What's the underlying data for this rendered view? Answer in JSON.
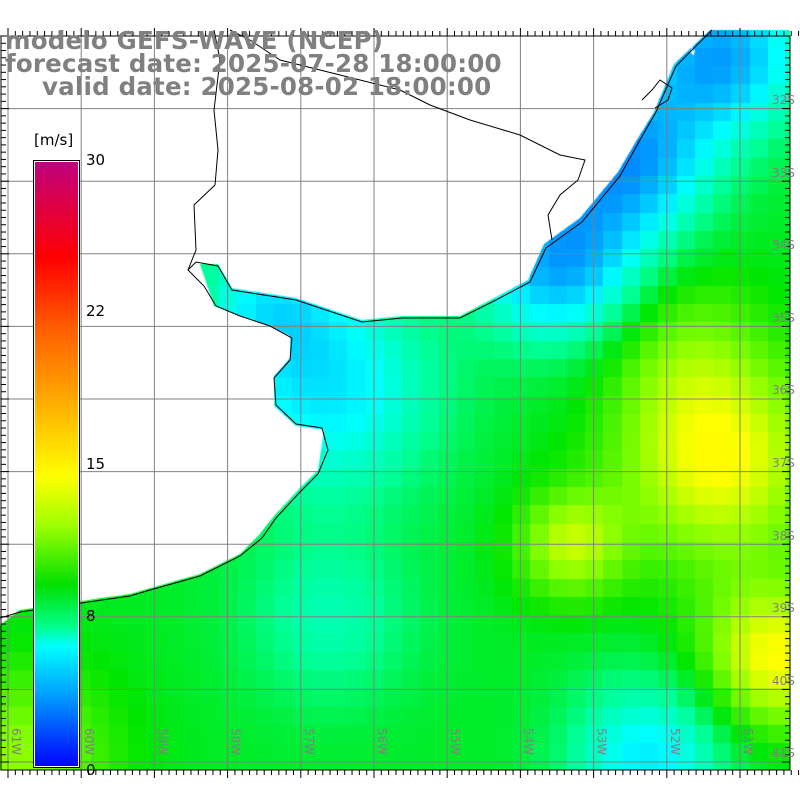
{
  "title": {
    "model": "modelo GEFS-WAVE (NCEP)",
    "forecast": "forecast date: 2025-07-28 18:00:00",
    "valid": "valid date: 2025-08-02 18:00:00"
  },
  "colorbar": {
    "units": "[m/s]",
    "ticks": [
      "30",
      "22",
      "15",
      "8",
      "0"
    ],
    "colors": {
      "max": "#c0007f",
      "red": "#ff0000",
      "yellow": "#ffff00",
      "green": "#00e000",
      "cyan": "#00ffff",
      "min": "#0000ff"
    }
  },
  "axes": {
    "lat_labels": [
      "32S",
      "33S",
      "34S",
      "35S",
      "36S",
      "37S",
      "38S",
      "39S",
      "40S",
      "41S"
    ],
    "lon_labels": [
      "61W",
      "60W",
      "59W",
      "58W",
      "57W",
      "56W",
      "55W",
      "54W",
      "53W",
      "52W",
      "51W"
    ]
  },
  "colors": {
    "land": "#ffffff",
    "grid": "#808080",
    "arrows": "#ffffff",
    "coast": "#000000",
    "title": "#808080"
  }
}
